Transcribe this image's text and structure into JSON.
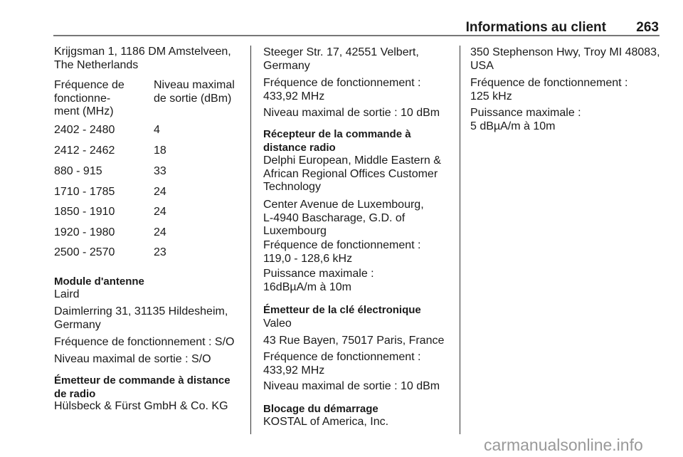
{
  "header": {
    "title": "Informations au client",
    "page_number": "263"
  },
  "col1": {
    "address": "Krijgsman 1, 1186 DM Amstelveen,\nThe Netherlands",
    "table": {
      "headers": [
        "Fréquence de\nfonctionne-\nment (MHz)",
        "Niveau maximal\nde sortie (dBm)"
      ],
      "rows": [
        [
          "2402 - 2480",
          "4"
        ],
        [
          "2412 - 2462",
          "18"
        ],
        [
          "880 - 915",
          "33"
        ],
        [
          "1710 - 1785",
          "24"
        ],
        [
          "1850 - 1910",
          "24"
        ],
        [
          "1920 - 1980",
          "24"
        ],
        [
          "2500 - 2570",
          "23"
        ]
      ]
    },
    "blocks": [
      {
        "text": "Module d'antenne",
        "bold": true
      },
      {
        "text": "Laird"
      },
      {
        "text": "Daimlerring 31, 31135 Hildesheim,\nGermany"
      },
      {
        "text": "Fréquence de fonctionnement : S/O"
      },
      {
        "text": "Niveau maximal de sortie : S/O"
      },
      {
        "text": "Émetteur de commande à distance\nde radio",
        "bold": true
      },
      {
        "text": "Hülsbeck & Fürst GmbH & Co. KG"
      }
    ]
  },
  "col2": {
    "blocks": [
      {
        "text": "Steeger Str. 17, 42551 Velbert,\nGermany"
      },
      {
        "text": "Fréquence de fonctionnement :\n433,92 MHz"
      },
      {
        "text": "Niveau maximal de sortie : 10 dBm"
      },
      {
        "text": "Récepteur de la commande à\ndistance radio",
        "bold": true
      },
      {
        "text": "Delphi European, Middle Eastern &\nAfrican Regional Offices Customer\nTechnology"
      },
      {
        "text": "Center Avenue de Luxembourg,\nL-4940 Bascharage, G.D. of\nLuxembourg"
      },
      {
        "text": "Fréquence de fonctionnement :\n119,0 - 128,6 kHz"
      },
      {
        "text": "Puissance maximale :\n16dBµA/m à 10m"
      },
      {
        "text": "Émetteur de la clé électronique",
        "bold": true
      },
      {
        "text": "Valeo"
      },
      {
        "text": "43 Rue Bayen, 75017 Paris, France"
      },
      {
        "text": "Fréquence de fonctionnement :\n433,92 MHz"
      },
      {
        "text": "Niveau maximal de sortie : 10 dBm"
      },
      {
        "text": "Blocage du démarrage",
        "bold": true
      },
      {
        "text": "KOSTAL of America, Inc."
      }
    ]
  },
  "col3": {
    "blocks": [
      {
        "text": "350 Stephenson Hwy, Troy MI 48083,\nUSA"
      },
      {
        "text": "Fréquence de fonctionnement :\n125 kHz"
      },
      {
        "text": "Puissance maximale :\n5 dBµA/m à 10m"
      }
    ]
  },
  "watermark": "carmanualsonline.info"
}
